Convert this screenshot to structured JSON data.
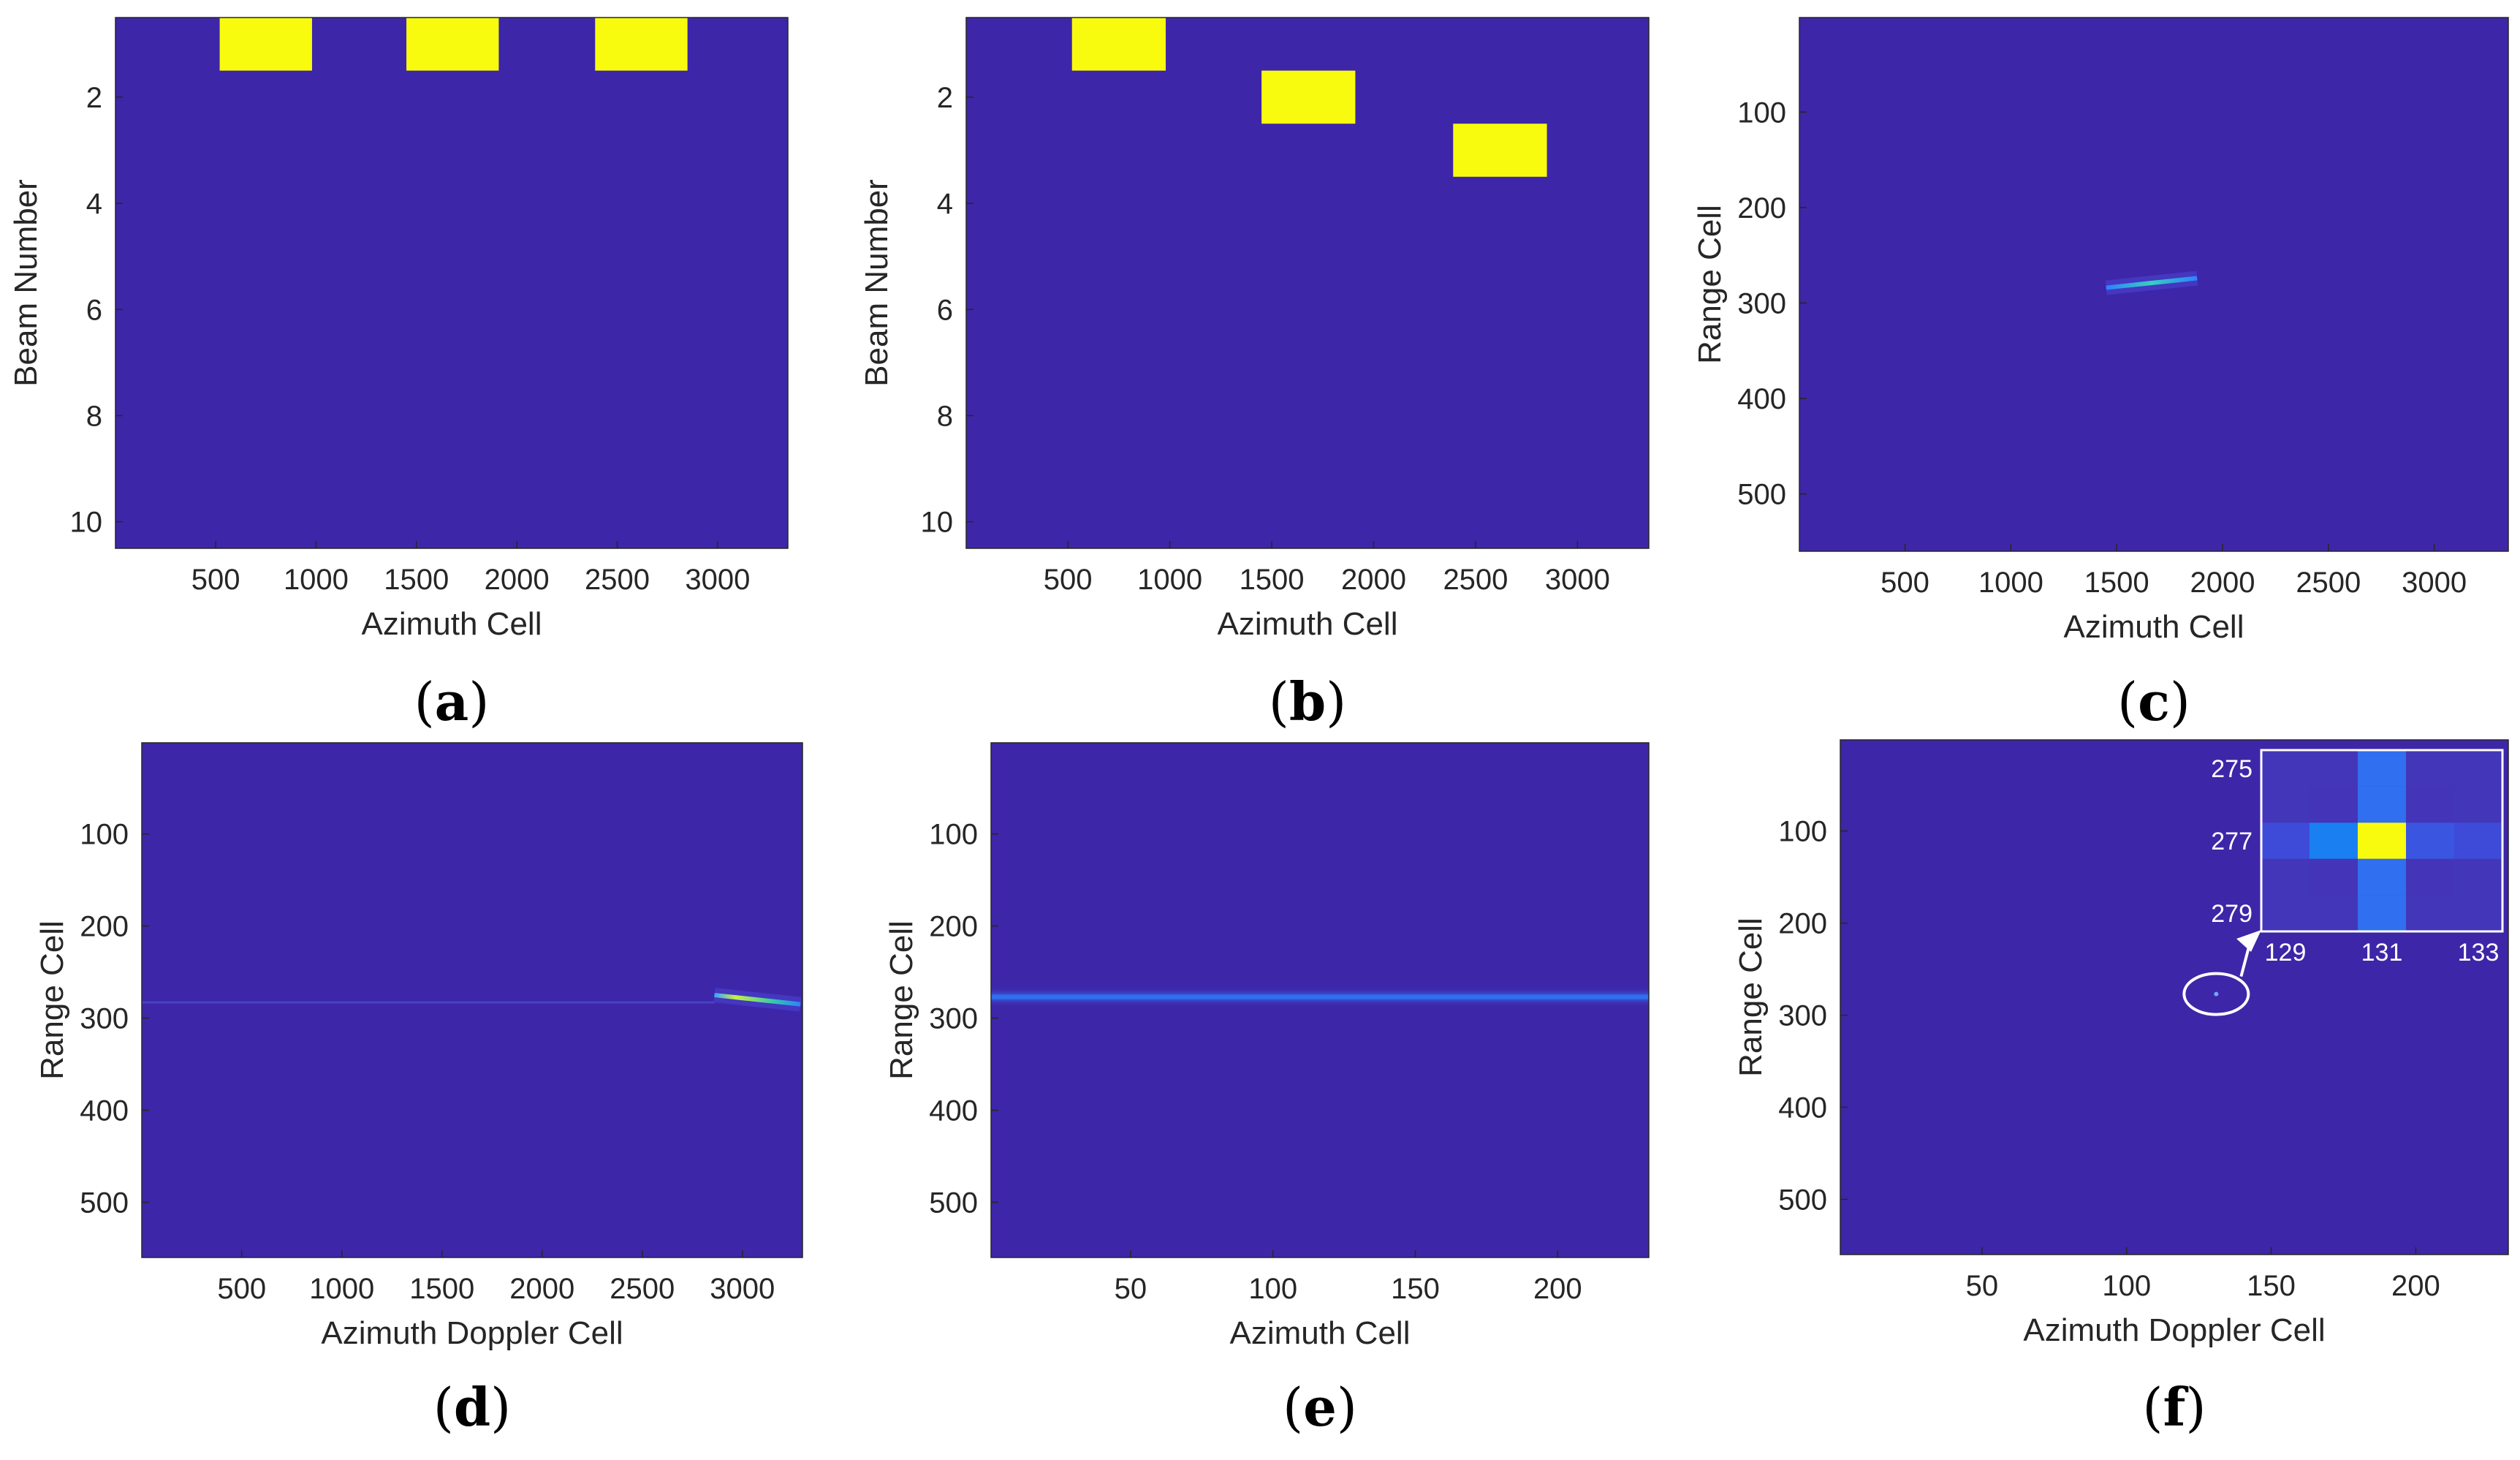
{
  "figure": {
    "background": "#ffffff",
    "plot_bg": "#3e26a8",
    "highlight": "#f9fb0e",
    "line_color": "#2f6ff0"
  },
  "chart_data": [
    {
      "panel": "(a)",
      "paren_open": "(",
      "letter": "a",
      "paren_close": ")",
      "type": "heatmap",
      "xlabel": "Azimuth Cell",
      "ylabel": "Beam Number",
      "xlim": [
        1,
        3350
      ],
      "ylim": [
        0.5,
        10.5
      ],
      "xticks": [
        500,
        1000,
        1500,
        2000,
        2500,
        3000
      ],
      "yticks": [
        2,
        4,
        6,
        8,
        10
      ],
      "blocks": [
        {
          "x0": 520,
          "x1": 980,
          "y0": 0.5,
          "y1": 1.5
        },
        {
          "x0": 1450,
          "x1": 1910,
          "y0": 0.5,
          "y1": 1.5
        },
        {
          "x0": 2390,
          "x1": 2850,
          "y0": 0.5,
          "y1": 1.5
        }
      ]
    },
    {
      "panel": "(b)",
      "paren_open": "(",
      "letter": "b",
      "paren_close": ")",
      "type": "heatmap",
      "xlabel": "Azimuth Cell",
      "ylabel": "Beam Number",
      "xlim": [
        1,
        3350
      ],
      "ylim": [
        0.5,
        10.5
      ],
      "xticks": [
        500,
        1000,
        1500,
        2000,
        2500,
        3000
      ],
      "yticks": [
        2,
        4,
        6,
        8,
        10
      ],
      "blocks": [
        {
          "x0": 520,
          "x1": 980,
          "y0": 0.5,
          "y1": 1.5
        },
        {
          "x0": 1450,
          "x1": 1910,
          "y0": 1.5,
          "y1": 2.5
        },
        {
          "x0": 2390,
          "x1": 2850,
          "y0": 2.5,
          "y1": 3.5
        }
      ]
    },
    {
      "panel": "(c)",
      "paren_open": "(",
      "letter": "c",
      "paren_close": ")",
      "type": "heatmap",
      "xlabel": "Azimuth Cell",
      "ylabel": "Range Cell",
      "xlim": [
        1,
        3350
      ],
      "ylim": [
        1,
        560
      ],
      "xticks": [
        500,
        1000,
        1500,
        2000,
        2500,
        3000
      ],
      "yticks": [
        100,
        200,
        300,
        400,
        500
      ],
      "streak": {
        "x0": 1450,
        "y0": 284,
        "x1": 1880,
        "y1": 274
      }
    },
    {
      "panel": "(d)",
      "paren_open": "(",
      "letter": "d",
      "paren_close": ")",
      "type": "heatmap",
      "xlabel": "Azimuth Doppler Cell",
      "ylabel": "Range Cell",
      "xlim": [
        1,
        3300
      ],
      "ylim": [
        1,
        560
      ],
      "xticks": [
        500,
        1000,
        1500,
        2000,
        2500,
        3000
      ],
      "yticks": [
        100,
        200,
        300,
        400,
        500
      ],
      "streak": {
        "x0": 2860,
        "y0": 275,
        "x1": 3290,
        "y1": 285
      },
      "faint_line": {
        "x0": 1,
        "x1": 2860,
        "y": 283
      }
    },
    {
      "panel": "(e)",
      "paren_open": "(",
      "letter": "e",
      "paren_close": ")",
      "type": "heatmap",
      "xlabel": "Azimuth Cell",
      "ylabel": "Range Cell",
      "xlim": [
        1,
        232
      ],
      "ylim": [
        1,
        560
      ],
      "xticks": [
        50,
        100,
        150,
        200
      ],
      "yticks": [
        100,
        200,
        300,
        400,
        500
      ],
      "band": {
        "y": 277
      }
    },
    {
      "panel": "(f)",
      "paren_open": "(",
      "letter": "f",
      "paren_close": ")",
      "type": "heatmap",
      "xlabel": "Azimuth Doppler Cell",
      "ylabel": "Range Cell",
      "xlim": [
        1,
        232
      ],
      "ylim": [
        1,
        560
      ],
      "xticks": [
        50,
        100,
        150,
        200
      ],
      "yticks": [
        100,
        200,
        300,
        400,
        500
      ],
      "point": {
        "x": 131,
        "y": 277
      },
      "inset": {
        "xticks": [
          129,
          131,
          133
        ],
        "yticks": [
          275,
          277,
          279
        ],
        "xrange": [
          128.5,
          133.5
        ],
        "yrange": [
          274.5,
          279.5
        ],
        "cells": [
          {
            "x": 131,
            "y": 277,
            "color": "#f9fb0e"
          },
          {
            "x": 130,
            "y": 277,
            "color": "#1a7ff0"
          },
          {
            "x": 131,
            "y": 276,
            "color": "#2f6ff0"
          },
          {
            "x": 131,
            "y": 278,
            "color": "#2f6ff0"
          },
          {
            "x": 131,
            "y": 275,
            "color": "#2f6ff0"
          },
          {
            "x": 131,
            "y": 279,
            "color": "#2f6ff0"
          },
          {
            "x": 132,
            "y": 277,
            "color": "#3a55e0"
          },
          {
            "x": 133,
            "y": 277,
            "color": "#3e4bd8"
          },
          {
            "x": 129,
            "y": 277,
            "color": "#3e4bd8"
          },
          {
            "x": 130,
            "y": 276,
            "color": "#4434b8"
          },
          {
            "x": 130,
            "y": 278,
            "color": "#4434b8"
          },
          {
            "x": 132,
            "y": 276,
            "color": "#4434b8"
          },
          {
            "x": 132,
            "y": 278,
            "color": "#4434b8"
          }
        ]
      }
    }
  ]
}
